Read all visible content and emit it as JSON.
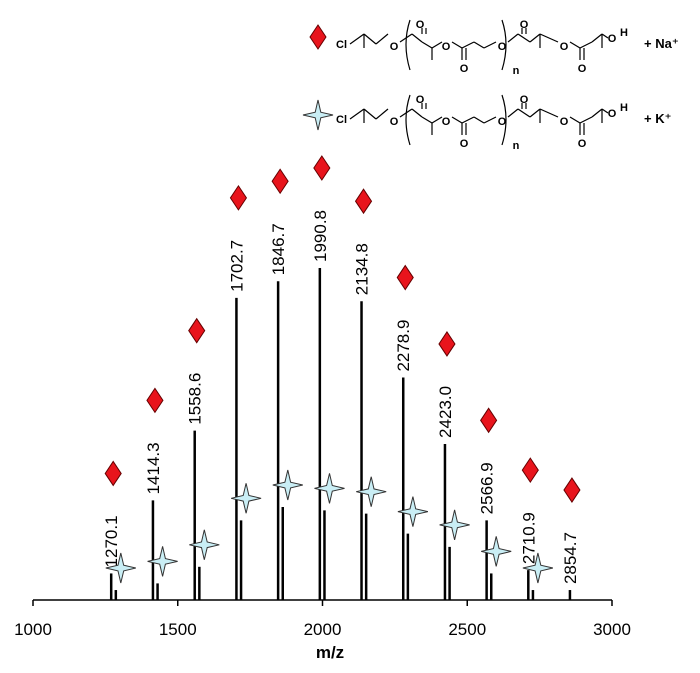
{
  "chart_data": {
    "type": "spectrum",
    "x_label": "m/z",
    "xlim": [
      1000,
      3000
    ],
    "xticks": [
      1000,
      1500,
      2000,
      2500,
      3000
    ],
    "ylim": [
      0,
      100
    ],
    "series": [
      {
        "name": "+ Na⁺",
        "marker": "diamond",
        "color": "#e8141c",
        "structure": [
          "Cl",
          "O",
          "O",
          "O",
          "O",
          "O",
          "O",
          "O",
          "O",
          "O",
          "H",
          "n"
        ],
        "x": [
          1270.1,
          1414.3,
          1558.6,
          1702.7,
          1846.7,
          1990.8,
          2134.8,
          2278.9,
          2423.0,
          2566.9,
          2710.9,
          2854.7
        ],
        "x_labels": [
          "1270.1",
          "1414.3",
          "1558.6",
          "1702.7",
          "1846.7",
          "1990.8",
          "2134.8",
          "2278.9",
          "2423.0",
          "2566.9",
          "2710.9",
          "2854.7"
        ],
        "values": [
          8,
          30,
          51,
          91,
          96,
          100,
          90,
          67,
          47,
          24,
          9,
          3
        ]
      },
      {
        "name": "+ K⁺",
        "marker": "star",
        "color": "#c9eef5",
        "structure": [
          "Cl",
          "O",
          "O",
          "O",
          "O",
          "O",
          "O",
          "O",
          "O",
          "O",
          "H",
          "n"
        ],
        "x": [
          1286.1,
          1430.3,
          1574.6,
          1718.7,
          1862.7,
          2006.8,
          2150.8,
          2294.9,
          2439.0,
          2582.9,
          2726.9
        ],
        "values": [
          3,
          5,
          10,
          24,
          28,
          27,
          26,
          20,
          16,
          8,
          3
        ]
      }
    ]
  }
}
